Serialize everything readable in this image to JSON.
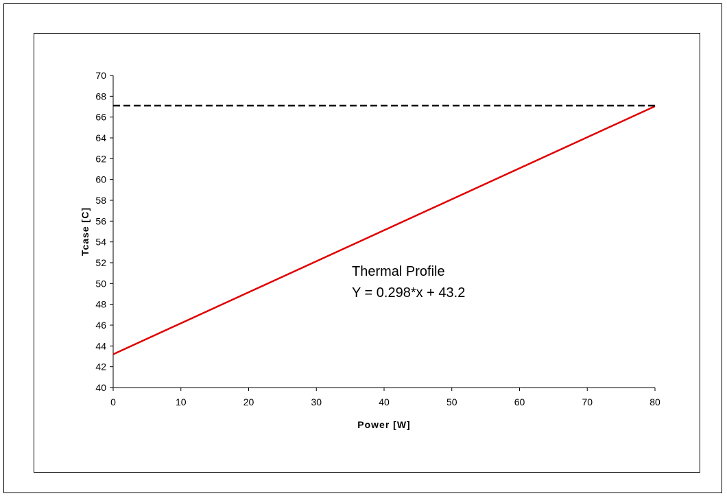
{
  "chart_data": {
    "type": "line",
    "xlabel": "Power [W]",
    "ylabel": "Tcase [C]",
    "xlim": [
      0,
      80
    ],
    "ylim": [
      40,
      70
    ],
    "x_ticks": [
      0,
      10,
      20,
      30,
      40,
      50,
      60,
      70,
      80
    ],
    "y_ticks": [
      40,
      42,
      44,
      46,
      48,
      50,
      52,
      54,
      56,
      58,
      60,
      62,
      64,
      66,
      68,
      70
    ],
    "grid": false,
    "series": [
      {
        "style": "solid",
        "color": "#e00000",
        "x": [
          0,
          80
        ],
        "y": [
          43.2,
          67.04
        ]
      },
      {
        "style": "dashed",
        "color": "#000000",
        "x": [
          0,
          80
        ],
        "y": [
          67.1,
          67.1
        ]
      }
    ],
    "annotations": [
      "Thermal Profile",
      "Y = 0.298*x + 43.2"
    ]
  }
}
